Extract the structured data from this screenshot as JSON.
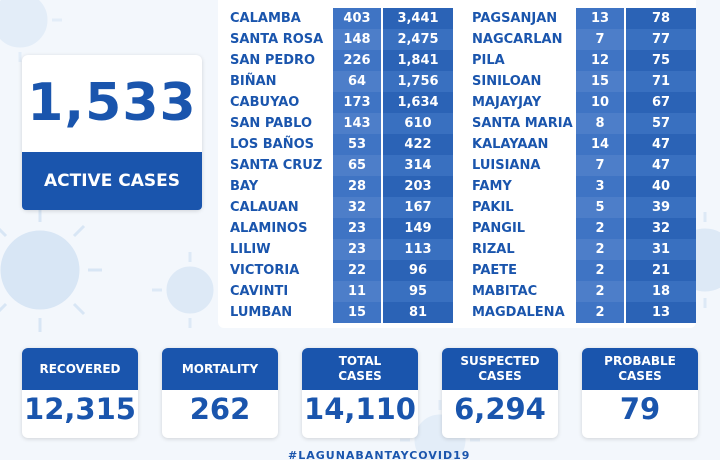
{
  "active": {
    "value": "1,533",
    "label": "ACTIVE CASES"
  },
  "table": {
    "left": [
      {
        "name": "CALAMBA",
        "active": "403",
        "total": "3,441"
      },
      {
        "name": "SANTA ROSA",
        "active": "148",
        "total": "2,475"
      },
      {
        "name": "SAN PEDRO",
        "active": "226",
        "total": "1,841"
      },
      {
        "name": "BIÑAN",
        "active": "64",
        "total": "1,756"
      },
      {
        "name": "CABUYAO",
        "active": "173",
        "total": "1,634"
      },
      {
        "name": "SAN PABLO",
        "active": "143",
        "total": "610"
      },
      {
        "name": "LOS BAÑOS",
        "active": "53",
        "total": "422"
      },
      {
        "name": "SANTA CRUZ",
        "active": "65",
        "total": "314"
      },
      {
        "name": "BAY",
        "active": "28",
        "total": "203"
      },
      {
        "name": "CALAUAN",
        "active": "32",
        "total": "167"
      },
      {
        "name": "ALAMINOS",
        "active": "23",
        "total": "149"
      },
      {
        "name": "LILIW",
        "active": "23",
        "total": "113"
      },
      {
        "name": "VICTORIA",
        "active": "22",
        "total": "96"
      },
      {
        "name": "CAVINTI",
        "active": "11",
        "total": "95"
      },
      {
        "name": "LUMBAN",
        "active": "15",
        "total": "81"
      }
    ],
    "right": [
      {
        "name": "PAGSANJAN",
        "active": "13",
        "total": "78"
      },
      {
        "name": "NAGCARLAN",
        "active": "7",
        "total": "77"
      },
      {
        "name": "PILA",
        "active": "12",
        "total": "75"
      },
      {
        "name": "SINILOAN",
        "active": "15",
        "total": "71"
      },
      {
        "name": "MAJAYJAY",
        "active": "10",
        "total": "67"
      },
      {
        "name": "SANTA MARIA",
        "active": "8",
        "total": "57"
      },
      {
        "name": "KALAYAAN",
        "active": "14",
        "total": "47"
      },
      {
        "name": "LUISIANA",
        "active": "7",
        "total": "47"
      },
      {
        "name": "FAMY",
        "active": "3",
        "total": "40"
      },
      {
        "name": "PAKIL",
        "active": "5",
        "total": "39"
      },
      {
        "name": "PANGIL",
        "active": "2",
        "total": "32"
      },
      {
        "name": "RIZAL",
        "active": "2",
        "total": "31"
      },
      {
        "name": "PAETE",
        "active": "2",
        "total": "21"
      },
      {
        "name": "MABITAC",
        "active": "2",
        "total": "18"
      },
      {
        "name": "MAGDALENA",
        "active": "2",
        "total": "13"
      }
    ]
  },
  "stats": [
    {
      "label": "RECOVERED",
      "value": "12,315"
    },
    {
      "label": "MORTALITY",
      "value": "262"
    },
    {
      "label": "TOTAL\nCASES",
      "value": "14,110"
    },
    {
      "label": "SUSPECTED\nCASES",
      "value": "6,294"
    },
    {
      "label": "PROBABLE\nCASES",
      "value": "79"
    }
  ],
  "hashtag": "#LAGUNABANTAYCOVID19",
  "colors": {
    "brand": "#1a55ad",
    "cell_active": "#3f74c4",
    "cell_total": "#2b63b6",
    "bg_tint": "#e7f0fa"
  },
  "icons": [
    "virus-icon"
  ]
}
